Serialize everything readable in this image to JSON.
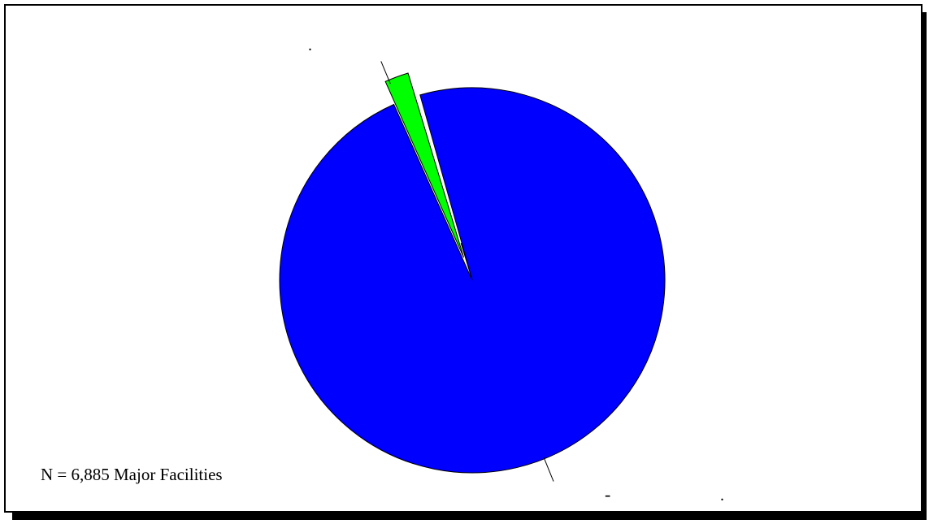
{
  "chart_data": {
    "type": "pie",
    "title": "",
    "slices": [
      {
        "label": "",
        "value": 97.7,
        "color": "#0000ff"
      },
      {
        "label": "",
        "value": 2.0,
        "color": "#00ff00"
      },
      {
        "label": "",
        "value": 0.3,
        "color": "#ffffff"
      }
    ],
    "annotations": {
      "n_label": "N = 6,885 Major Facilities",
      "label_dot_top": ".",
      "label_dash_bottom": "-",
      "label_dot_bottom": "."
    },
    "exploded_slice_index": 1,
    "legend": "none"
  }
}
